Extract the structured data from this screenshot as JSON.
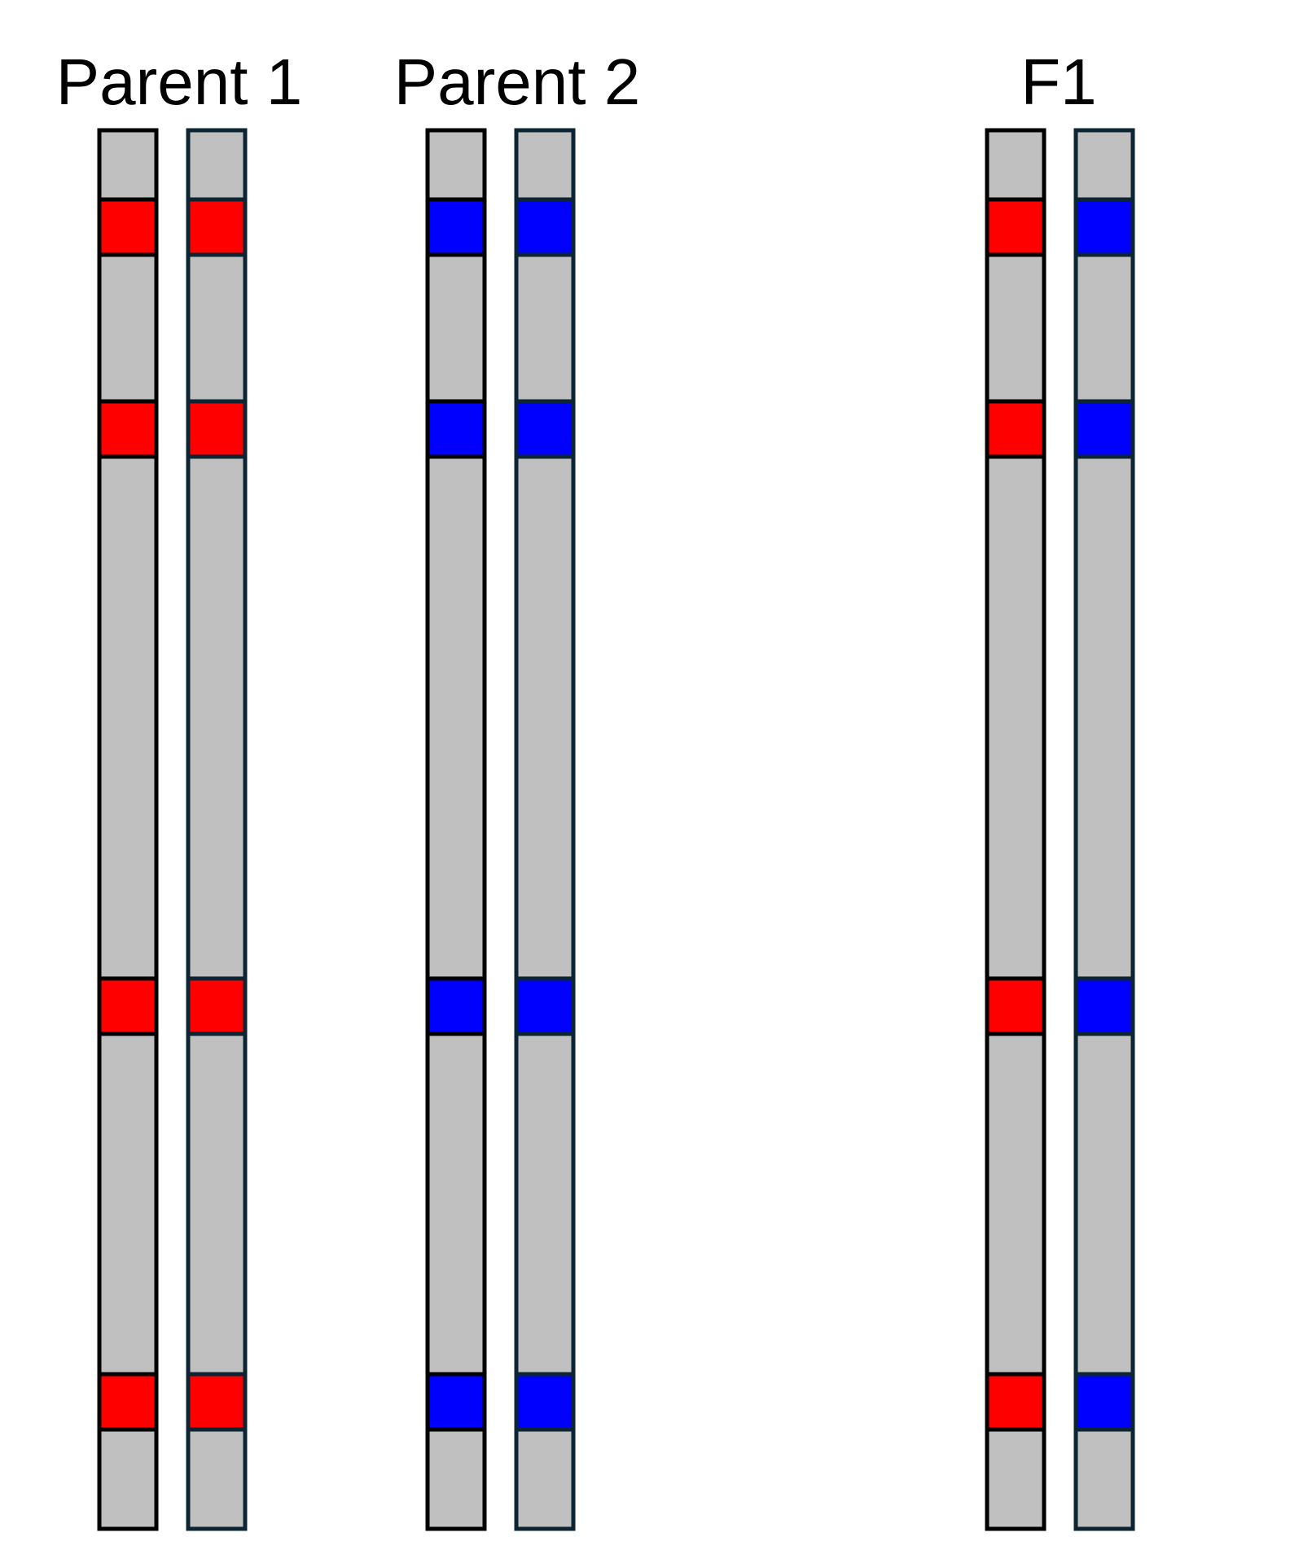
{
  "groups": [
    {
      "label": "Parent 1",
      "chromosomes": [
        {
          "markers": [
            "red",
            "red",
            "red",
            "red"
          ]
        },
        {
          "markers": [
            "red",
            "red",
            "red",
            "red"
          ]
        }
      ]
    },
    {
      "label": "Parent 2",
      "chromosomes": [
        {
          "markers": [
            "blue",
            "blue",
            "blue",
            "blue"
          ]
        },
        {
          "markers": [
            "blue",
            "blue",
            "blue",
            "blue"
          ]
        }
      ]
    },
    {
      "label": "F1",
      "chromosomes": [
        {
          "markers": [
            "red",
            "red",
            "red",
            "red"
          ]
        },
        {
          "markers": [
            "blue",
            "blue",
            "blue",
            "blue"
          ]
        }
      ]
    }
  ],
  "colors": {
    "chromosome": "#c0c0c0",
    "red": "#ff0000",
    "blue": "#0000ff",
    "outline_dark": "#000000",
    "outline_navy": "#0d2533"
  }
}
